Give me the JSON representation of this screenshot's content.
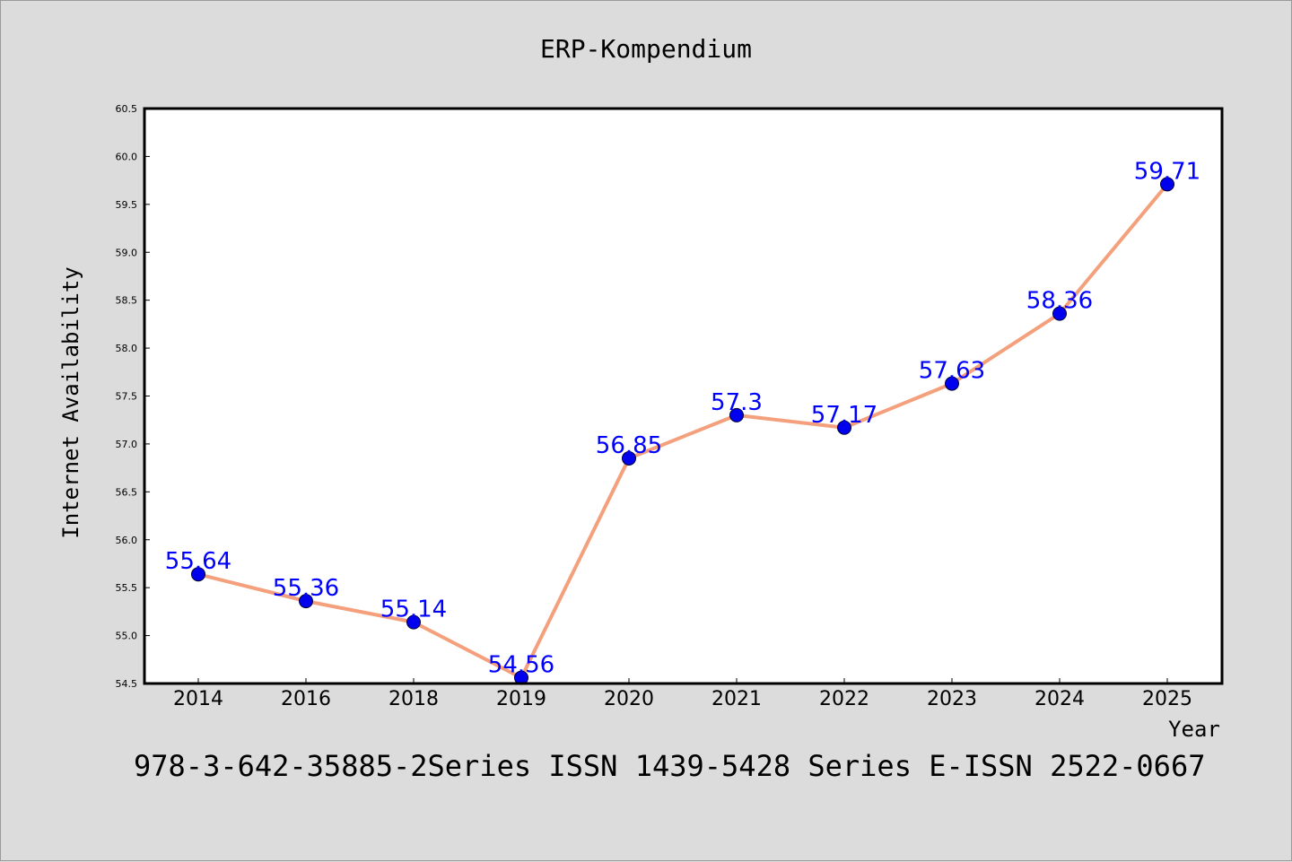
{
  "chart_data": {
    "type": "line",
    "title": "ERP-Kompendium",
    "xlabel": "Year",
    "ylabel": "Internet Availability",
    "categories": [
      "2014",
      "2016",
      "2018",
      "2019",
      "2020",
      "2021",
      "2022",
      "2023",
      "2024",
      "2025"
    ],
    "values": [
      55.64,
      55.36,
      55.14,
      54.56,
      56.85,
      57.3,
      57.17,
      57.63,
      58.36,
      59.71
    ],
    "data_labels": [
      "55.64",
      "55.36",
      "55.14",
      "54.56",
      "56.85",
      "57.3",
      "57.17",
      "57.63",
      "58.36",
      "59.71"
    ],
    "ylim": [
      54.5,
      60.5
    ],
    "yticks": [
      "54.5",
      "55.0",
      "55.5",
      "56.0",
      "56.5",
      "57.0",
      "57.5",
      "58.0",
      "58.5",
      "59.0",
      "59.5",
      "60.0",
      "60.5"
    ],
    "grid": false,
    "line_color": "#f4a07c",
    "marker_color": "#0000ee",
    "label_color": "#0000ff"
  },
  "footer_text": "978-3-642-35885-2Series ISSN 1439-5428 Series E-ISSN 2522-0667"
}
